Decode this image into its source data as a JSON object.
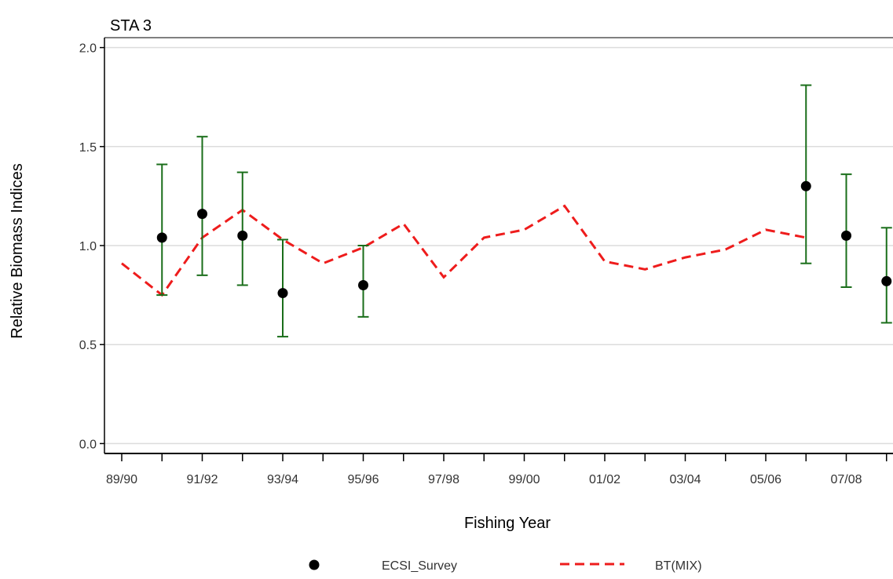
{
  "chart_data": {
    "type": "line",
    "title": "STA 3",
    "xlabel": "Fishing Year",
    "ylabel": "Relative Biomass Indices",
    "ylim": [
      -0.05,
      2.05
    ],
    "yticks": [
      "0.0",
      "0.5",
      "1.0",
      "1.5",
      "2.0"
    ],
    "ytick_values": [
      0.0,
      0.5,
      1.0,
      1.5,
      2.0
    ],
    "xtick_labels": [
      "89/90",
      "91/92",
      "93/94",
      "95/96",
      "97/98",
      "99/00",
      "01/02",
      "03/04",
      "05/06",
      "07/08"
    ],
    "years": [
      "89/90",
      "90/91",
      "91/92",
      "92/93",
      "93/94",
      "94/95",
      "95/96",
      "96/97",
      "97/98",
      "98/99",
      "99/00",
      "00/01",
      "01/02",
      "02/03",
      "03/04",
      "04/05",
      "05/06",
      "06/07",
      "07/08",
      "08/09"
    ],
    "grid": "horizontal",
    "legend_position": "bottom",
    "series": [
      {
        "name": "ECSI_Survey",
        "kind": "points_with_error_bars",
        "color": "#000000",
        "error_color": "#1a6e1a",
        "points": [
          {
            "x": "90/91",
            "y": 1.04,
            "lo": 0.75,
            "hi": 1.41
          },
          {
            "x": "91/92",
            "y": 1.16,
            "lo": 0.85,
            "hi": 1.55
          },
          {
            "x": "92/93",
            "y": 1.05,
            "lo": 0.8,
            "hi": 1.37
          },
          {
            "x": "93/94",
            "y": 0.76,
            "lo": 0.54,
            "hi": 1.03
          },
          {
            "x": "95/96",
            "y": 0.8,
            "lo": 0.64,
            "hi": 1.0
          },
          {
            "x": "06/07",
            "y": 1.3,
            "lo": 0.91,
            "hi": 1.81
          },
          {
            "x": "07/08",
            "y": 1.05,
            "lo": 0.79,
            "hi": 1.36
          },
          {
            "x": "08/09",
            "y": 0.82,
            "lo": 0.61,
            "hi": 1.09
          }
        ]
      },
      {
        "name": "BT(MIX)",
        "kind": "dashed_line",
        "color": "#ee1c1c",
        "points": [
          {
            "x": "89/90",
            "y": 0.91
          },
          {
            "x": "90/91",
            "y": 0.75
          },
          {
            "x": "91/92",
            "y": 1.04
          },
          {
            "x": "92/93",
            "y": 1.18
          },
          {
            "x": "93/94",
            "y": 1.03
          },
          {
            "x": "94/95",
            "y": 0.91
          },
          {
            "x": "95/96",
            "y": 0.99
          },
          {
            "x": "96/97",
            "y": 1.11
          },
          {
            "x": "97/98",
            "y": 0.84
          },
          {
            "x": "98/99",
            "y": 1.04
          },
          {
            "x": "99/00",
            "y": 1.08
          },
          {
            "x": "00/01",
            "y": 1.2
          },
          {
            "x": "01/02",
            "y": 0.92
          },
          {
            "x": "02/03",
            "y": 0.88
          },
          {
            "x": "03/04",
            "y": 0.94
          },
          {
            "x": "04/05",
            "y": 0.98
          },
          {
            "x": "05/06",
            "y": 1.08
          },
          {
            "x": "06/07",
            "y": 1.04
          }
        ]
      }
    ]
  }
}
